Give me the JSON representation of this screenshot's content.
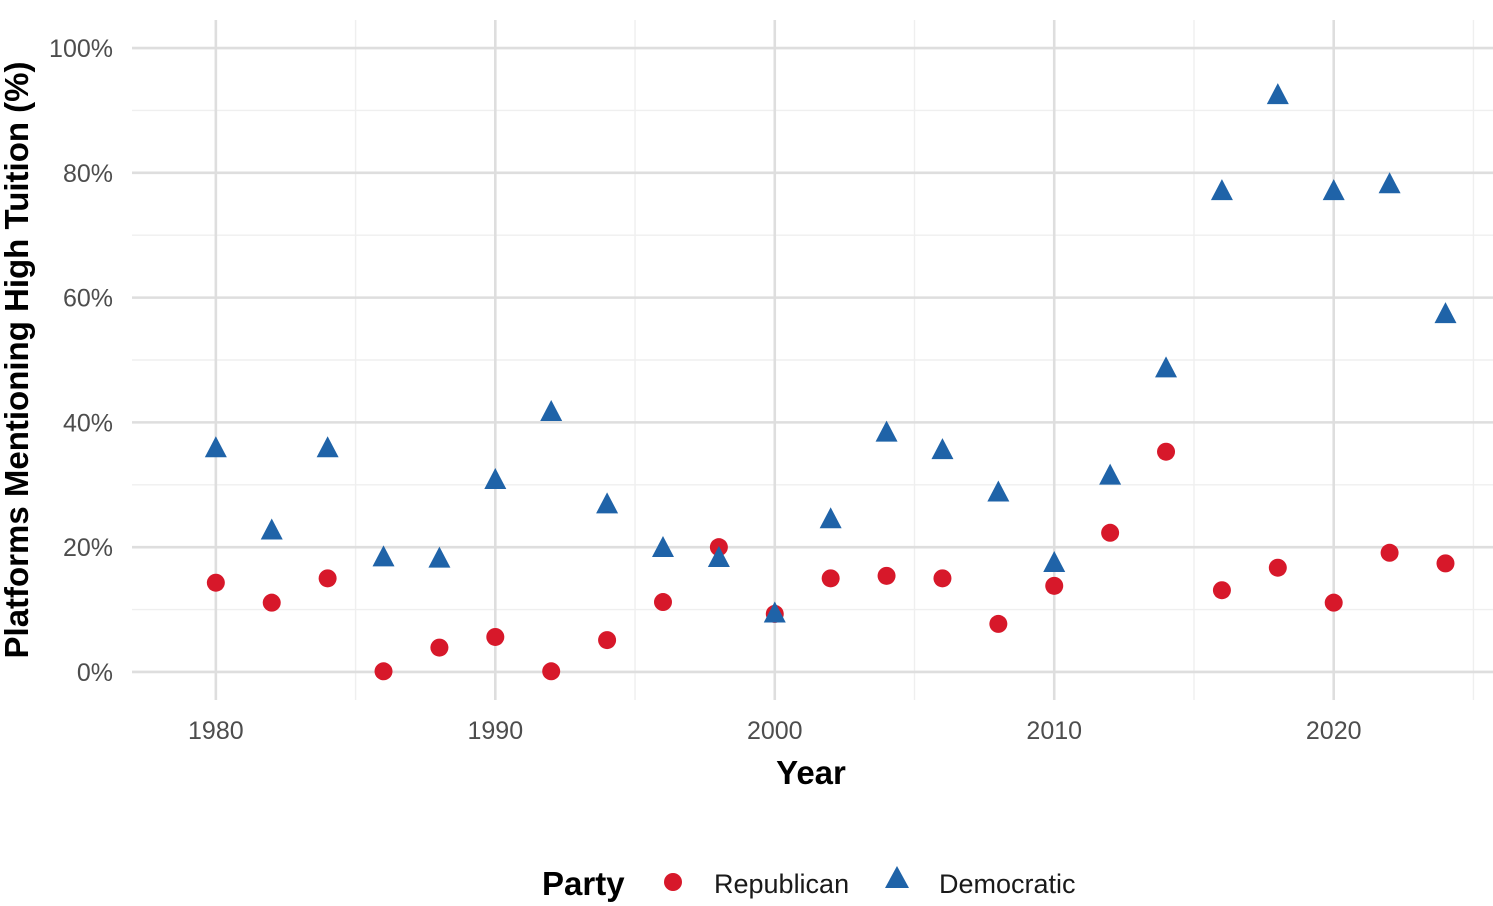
{
  "chart_data": {
    "type": "scatter",
    "title": "",
    "xlabel": "Year",
    "ylabel": "Platforms Mentioning High Tuition (%)",
    "xlim": [
      1977,
      2025.7
    ],
    "ylim": [
      -4.5,
      104.5
    ],
    "x_ticks": [
      1980,
      1990,
      2000,
      2010,
      2020
    ],
    "x_tick_labels": [
      "1980",
      "1990",
      "2000",
      "2010",
      "2020"
    ],
    "y_ticks": [
      0,
      20,
      40,
      60,
      80,
      100
    ],
    "y_tick_labels": [
      "0%",
      "20%",
      "40%",
      "60%",
      "80%",
      "100%"
    ],
    "grid": true,
    "legend": {
      "title": "Party",
      "position": "bottom"
    },
    "series": [
      {
        "name": "Republican",
        "color": "#d7182a",
        "shape": "circle",
        "x": [
          1980,
          1982,
          1984,
          1986,
          1988,
          1990,
          1992,
          1994,
          1996,
          1998,
          2000,
          2002,
          2004,
          2006,
          2008,
          2010,
          2012,
          2014,
          2016,
          2018,
          2020,
          2022,
          2024
        ],
        "y": [
          14.3,
          11.1,
          15.0,
          0.1,
          3.9,
          5.6,
          0.1,
          5.1,
          11.2,
          20.0,
          9.3,
          15.0,
          15.4,
          15.0,
          7.7,
          13.8,
          22.3,
          35.3,
          13.1,
          16.7,
          11.1,
          19.1,
          17.4
        ]
      },
      {
        "name": "Democratic",
        "color": "#1f63a8",
        "shape": "triangle",
        "x": [
          1980,
          1982,
          1984,
          1986,
          1988,
          1990,
          1992,
          1994,
          1996,
          1998,
          2000,
          2002,
          2004,
          2006,
          2008,
          2010,
          2012,
          2014,
          2016,
          2018,
          2020,
          2022,
          2024
        ],
        "y": [
          35.7,
          22.5,
          35.7,
          18.2,
          18.0,
          30.6,
          41.5,
          26.7,
          19.7,
          18.1,
          9.2,
          24.3,
          38.2,
          35.4,
          28.6,
          17.3,
          31.3,
          48.5,
          76.9,
          92.3,
          76.9,
          78.0,
          57.2
        ]
      }
    ]
  }
}
